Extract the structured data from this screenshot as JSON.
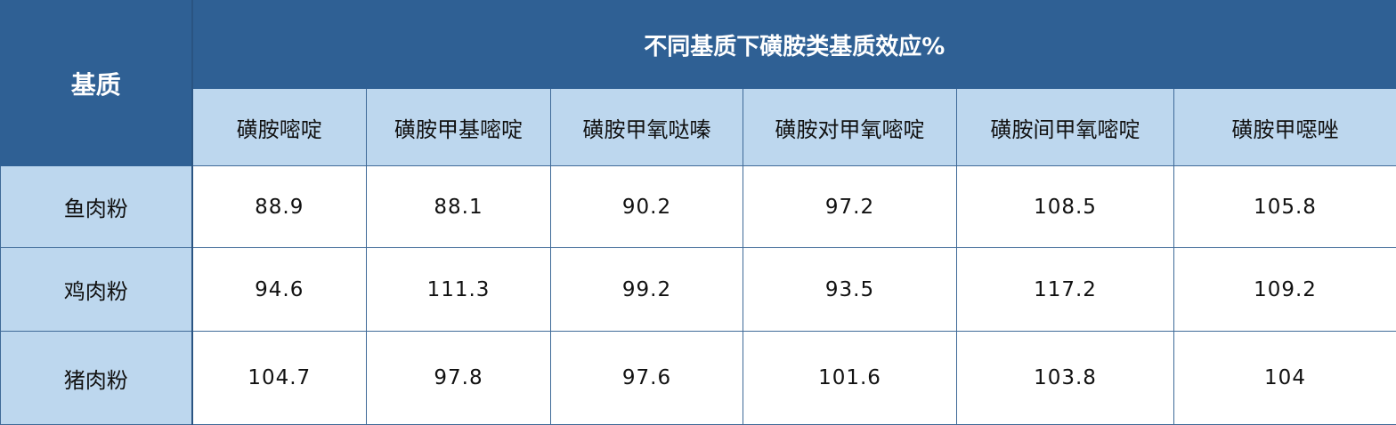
{
  "table": {
    "corner_header": "基质",
    "title": "不同基质下磺胺类基质效应%",
    "columns": [
      "磺胺嘧啶",
      "磺胺甲基嘧啶",
      "磺胺甲氧哒嗪",
      "磺胺对甲氧嘧啶",
      "磺胺间甲氧嘧啶",
      "磺胺甲噁唑"
    ],
    "rows": [
      {
        "label": "鱼肉粉",
        "values": [
          "88.9",
          "88.1",
          "90.2",
          "97.2",
          "108.5",
          "105.8"
        ]
      },
      {
        "label": "鸡肉粉",
        "values": [
          "94.6",
          "111.3",
          "99.2",
          "93.5",
          "117.2",
          "109.2"
        ]
      },
      {
        "label": "猪肉粉",
        "values": [
          "104.7",
          "97.8",
          "97.6",
          "101.6",
          "103.8",
          "104"
        ]
      }
    ]
  },
  "colors": {
    "header_dark": "#2f6094",
    "header_light": "#bdd7ee",
    "border": "#3f6a98"
  }
}
